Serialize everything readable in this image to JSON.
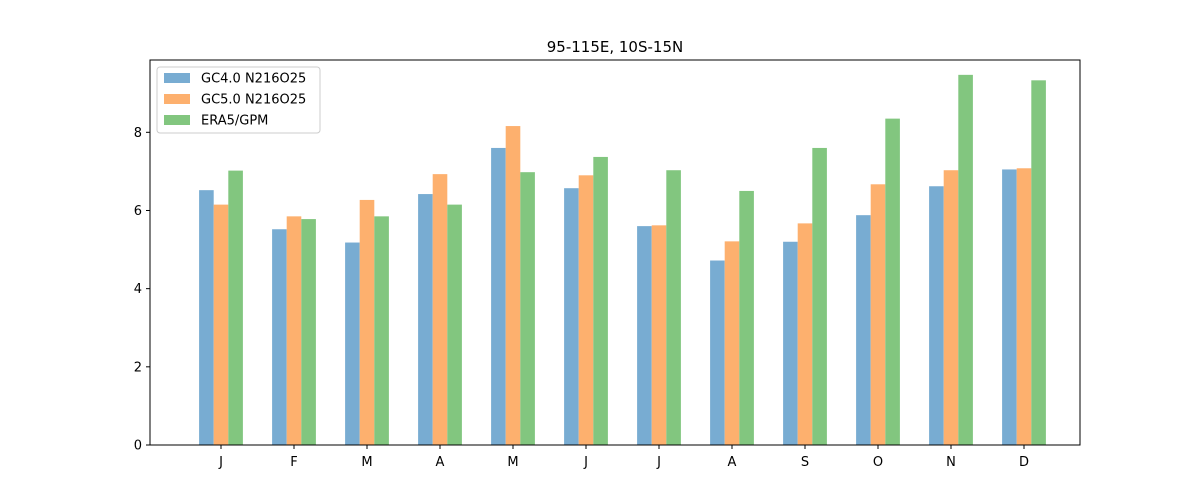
{
  "chart_data": {
    "type": "bar",
    "title": "95-115E, 10S-15N",
    "xlabel": "",
    "ylabel": "",
    "categories": [
      "J",
      "F",
      "M",
      "A",
      "M",
      "J",
      "J",
      "A",
      "S",
      "O",
      "N",
      "D"
    ],
    "series": [
      {
        "name": "GC4.0 N216O25",
        "color": "#78acd2",
        "values": [
          6.52,
          5.52,
          5.18,
          6.42,
          7.6,
          6.57,
          5.6,
          4.72,
          5.2,
          5.88,
          6.62,
          7.05
        ]
      },
      {
        "name": "GC5.0 N216O25",
        "color": "#fdb06e",
        "values": [
          6.15,
          5.85,
          6.27,
          6.93,
          8.16,
          6.9,
          5.62,
          5.21,
          5.67,
          6.67,
          7.03,
          7.08
        ]
      },
      {
        "name": "ERA5/GPM",
        "color": "#82c67f",
        "values": [
          7.02,
          5.78,
          5.85,
          6.15,
          6.98,
          7.37,
          7.03,
          6.5,
          7.6,
          8.35,
          9.47,
          9.33
        ]
      }
    ],
    "ylim": [
      0,
      9.85
    ],
    "yticks": [
      0,
      2,
      4,
      6,
      8
    ],
    "grid": false,
    "legend_position": "top-left"
  }
}
